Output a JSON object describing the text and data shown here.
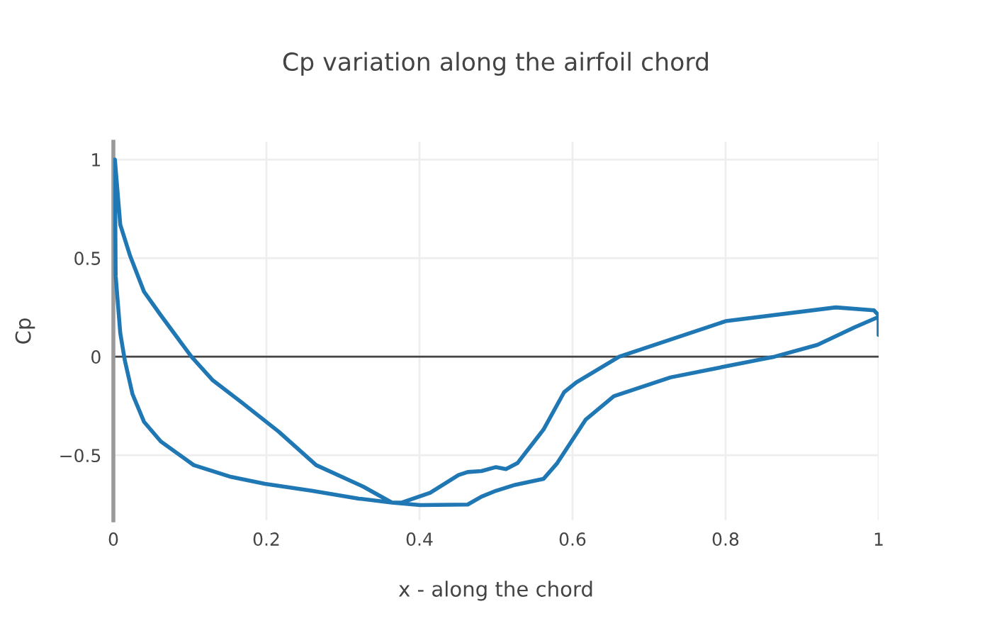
{
  "chart_data": {
    "type": "line",
    "title": "Cp variation along the airfoil chord",
    "xlabel": "x - along the chord",
    "ylabel": "Cp",
    "series": [
      {
        "color": "#1f77b4",
        "x": [
          1.0,
          1.0,
          0.994,
          0.944,
          0.8,
          0.661,
          0.605,
          0.589,
          0.562,
          0.528,
          0.513,
          0.5,
          0.481,
          0.463,
          0.451,
          0.414,
          0.377,
          0.364,
          0.327,
          0.265,
          0.216,
          0.167,
          0.13,
          0.102,
          0.062,
          0.04,
          0.022,
          0.009,
          0.002,
          0.003,
          0.009,
          0.015,
          0.025,
          0.04,
          0.062,
          0.105,
          0.154,
          0.198,
          0.259,
          0.321,
          0.364,
          0.401,
          0.463,
          0.481,
          0.5,
          0.525,
          0.562,
          0.58,
          0.617,
          0.654,
          0.728,
          0.799,
          0.864,
          0.92,
          0.969,
          0.999
        ],
        "values": [
          0.11,
          0.21,
          0.235,
          0.25,
          0.18,
          0.0,
          -0.13,
          -0.18,
          -0.37,
          -0.54,
          -0.57,
          -0.56,
          -0.58,
          -0.585,
          -0.6,
          -0.69,
          -0.74,
          -0.74,
          -0.66,
          -0.55,
          -0.38,
          -0.23,
          -0.12,
          0.0,
          0.21,
          0.33,
          0.51,
          0.67,
          1.0,
          0.41,
          0.12,
          -0.02,
          -0.19,
          -0.33,
          -0.43,
          -0.55,
          -0.61,
          -0.645,
          -0.68,
          -0.72,
          -0.74,
          -0.753,
          -0.75,
          -0.71,
          -0.68,
          -0.65,
          -0.62,
          -0.54,
          -0.32,
          -0.2,
          -0.105,
          -0.05,
          0.0,
          0.06,
          0.15,
          0.2
        ]
      }
    ],
    "xlim": [
      0,
      1
    ],
    "ylim": [
      -0.83,
      1.09
    ],
    "xticks": [
      0,
      0.2,
      0.4,
      0.6,
      0.8,
      1
    ],
    "yticks": [
      {
        "value": -0.5,
        "label": "−0.5"
      },
      0,
      0.5,
      1
    ],
    "grid": true,
    "line_style": "solid",
    "marker": "none",
    "ref_lines": [
      {
        "axis": "y",
        "value": 0,
        "color": "#444444"
      }
    ]
  }
}
